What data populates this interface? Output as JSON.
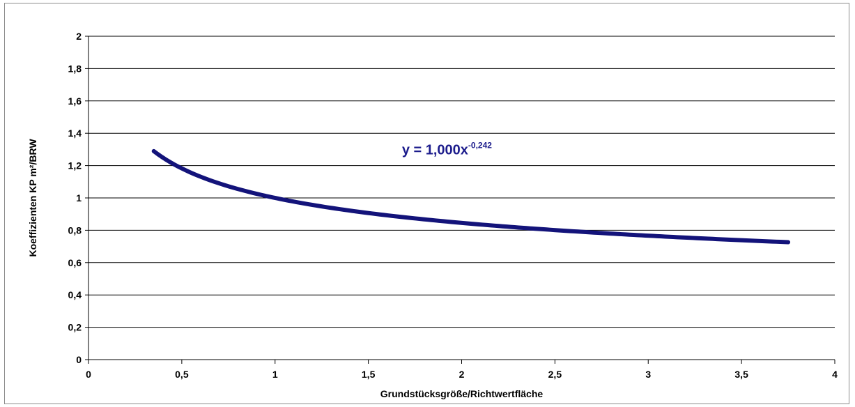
{
  "chart_data": {
    "type": "line",
    "title": "",
    "xlabel": "Grundstücksgröße/Richtwertfläche",
    "ylabel": "Koeffizienten KP m²/BRW",
    "xlim": [
      0,
      4
    ],
    "ylim": [
      0,
      2
    ],
    "x_ticks": [
      "0",
      "0,5",
      "1",
      "1,5",
      "2",
      "2,5",
      "3",
      "3,5",
      "4"
    ],
    "y_ticks": [
      "0",
      "0,2",
      "0,4",
      "0,6",
      "0,8",
      "1",
      "1,2",
      "1,4",
      "1,6",
      "1,8",
      "2"
    ],
    "grid": "horizontal",
    "series": [
      {
        "color": "#13137a",
        "formula": {
          "coefficient": 1.0,
          "exponent": -0.242
        },
        "x": [
          0.35,
          0.4,
          0.45,
          0.5,
          0.6,
          0.7,
          0.8,
          0.9,
          1.0,
          1.25,
          1.5,
          1.75,
          2.0,
          2.25,
          2.5,
          2.75,
          3.0,
          3.25,
          3.5,
          3.75
        ],
        "y": [
          1.29,
          1.25,
          1.21,
          1.18,
          1.13,
          1.09,
          1.06,
          1.03,
          1.0,
          0.95,
          0.91,
          0.87,
          0.85,
          0.82,
          0.8,
          0.78,
          0.77,
          0.75,
          0.74,
          0.73
        ]
      }
    ],
    "annotations": [
      {
        "text_main": "y = 1,000x",
        "text_sup": "-0,242",
        "color": "#1c1c8c",
        "at": [
          1.68,
          1.27
        ]
      }
    ]
  }
}
